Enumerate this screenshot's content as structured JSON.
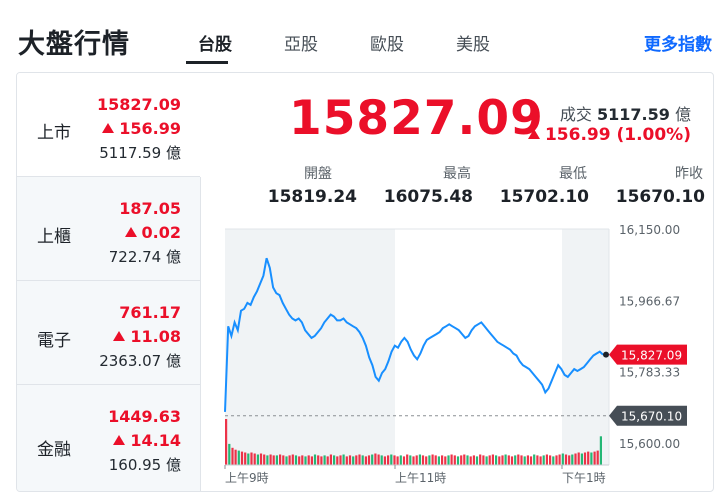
{
  "header": {
    "title": "大盤行情",
    "tabs": [
      "台股",
      "亞股",
      "歐股",
      "美股"
    ],
    "more_link": "更多指數"
  },
  "sidebar": {
    "items": [
      {
        "name": "上市",
        "value": "15827.09",
        "change": "156.99",
        "volume": "5117.59 億"
      },
      {
        "name": "上櫃",
        "value": "187.05",
        "change": "0.02",
        "volume": "722.74 億"
      },
      {
        "name": "電子",
        "value": "761.17",
        "change": "11.08",
        "volume": "2363.07 億"
      },
      {
        "name": "金融",
        "value": "1449.63",
        "change": "14.14",
        "volume": "160.95 億"
      }
    ]
  },
  "quote": {
    "price": "15827.09",
    "volume_label": "成交",
    "volume_value": "5117.59",
    "volume_unit": "億",
    "change": "156.99 (1.00%)",
    "stats": [
      {
        "label": "開盤",
        "value": "15819.24"
      },
      {
        "label": "最高",
        "value": "16075.48"
      },
      {
        "label": "最低",
        "value": "15702.10"
      },
      {
        "label": "昨收",
        "value": "15670.10"
      }
    ]
  },
  "colors": {
    "up": "#eb0f29",
    "down": "#00ab5e",
    "line": "#188fff",
    "accent": "#0f69ff"
  },
  "chart_data": {
    "type": "line",
    "y_ticks": [
      "16,150.00",
      "15,966.67",
      "15,783.33",
      "15,600.00"
    ],
    "ylim": [
      15600,
      16150
    ],
    "x_ticks": [
      "上午9時",
      "上午11時",
      "下午1時"
    ],
    "current_label": "15,827.09",
    "prev_close_label": "15,670.10",
    "current_value": 15827.09,
    "prev_close_value": 15670.1,
    "series": [
      {
        "values": [
          15680,
          15900,
          15875,
          15910,
          15890,
          15940,
          15945,
          15960,
          15955,
          15975,
          15990,
          16010,
          16030,
          16075,
          16050,
          16000,
          15985,
          15980,
          15960,
          15945,
          15930,
          15920,
          15915,
          15920,
          15910,
          15890,
          15880,
          15870,
          15875,
          15885,
          15895,
          15910,
          15920,
          15930,
          15925,
          15915,
          15915,
          15920,
          15910,
          15905,
          15900,
          15895,
          15885,
          15870,
          15850,
          15820,
          15800,
          15770,
          15760,
          15780,
          15790,
          15810,
          15835,
          15850,
          15845,
          15860,
          15870,
          15860,
          15840,
          15825,
          15815,
          15830,
          15850,
          15865,
          15870,
          15875,
          15880,
          15885,
          15895,
          15900,
          15905,
          15900,
          15895,
          15890,
          15880,
          15870,
          15875,
          15890,
          15900,
          15905,
          15910,
          15900,
          15890,
          15880,
          15870,
          15860,
          15855,
          15850,
          15845,
          15840,
          15830,
          15825,
          15810,
          15800,
          15795,
          15790,
          15780,
          15770,
          15760,
          15750,
          15730,
          15740,
          15760,
          15780,
          15800,
          15790,
          15775,
          15770,
          15780,
          15790,
          15785,
          15790,
          15795,
          15805,
          15815,
          15825,
          15830,
          15835,
          15827
        ]
      }
    ],
    "volume_bars": [
      48,
      22,
      18,
      16,
      15,
      14,
      13,
      12,
      13,
      12,
      11,
      12,
      11,
      10,
      11,
      10,
      10,
      11,
      10,
      9,
      10,
      11,
      10,
      9,
      10,
      9,
      10,
      9,
      11,
      10,
      9,
      10,
      9,
      11,
      10,
      9,
      10,
      11,
      9,
      10,
      9,
      10,
      11,
      10,
      9,
      10,
      11,
      12,
      11,
      10,
      9,
      10,
      11,
      10,
      9,
      10,
      9,
      11,
      10,
      9,
      10,
      11,
      10,
      9,
      10,
      11,
      10,
      9,
      10,
      9,
      10,
      11,
      10,
      9,
      10,
      11,
      10,
      9,
      10,
      9,
      11,
      10,
      9,
      10,
      11,
      10,
      9,
      10,
      11,
      10,
      9,
      10,
      11,
      10,
      9,
      10,
      9,
      11,
      10,
      9,
      10,
      11,
      10,
      9,
      10,
      11,
      12,
      11,
      10,
      11,
      12,
      13,
      12,
      13,
      14,
      13,
      14,
      15,
      30
    ]
  }
}
